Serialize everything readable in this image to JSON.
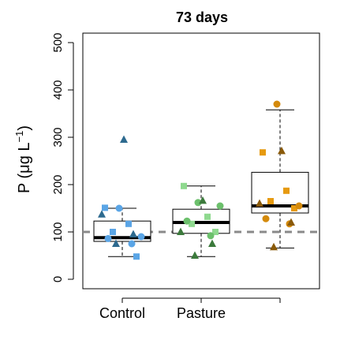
{
  "chart_data": {
    "type": "box",
    "title": "73 days",
    "ylabel": {
      "prefix": "P (",
      "mu": "μ",
      "g": "g L",
      "sup": "−1",
      "suffix": ")"
    },
    "categories": [
      "Control",
      "Pasture",
      ""
    ],
    "ylim": [
      -20,
      520
    ],
    "yticks": [
      0,
      100,
      200,
      300,
      400,
      500
    ],
    "reference_line": 100,
    "boxes": [
      {
        "whisker_low": 48,
        "q1": 80,
        "median": 88,
        "q3": 123,
        "whisker_high": 150
      },
      {
        "whisker_low": 48,
        "q1": 97,
        "median": 120,
        "q3": 148,
        "whisker_high": 197
      },
      {
        "whisker_low": 66,
        "q1": 140,
        "median": 155,
        "q3": 226,
        "whisker_high": 358
      }
    ],
    "points": [
      {
        "group": 0,
        "shape": "square",
        "color": "#5aa5e6",
        "y": 151
      },
      {
        "group": 0,
        "shape": "square",
        "color": "#5aa5e6",
        "y": 117
      },
      {
        "group": 0,
        "shape": "square",
        "color": "#5aa5e6",
        "y": 100
      },
      {
        "group": 0,
        "shape": "square",
        "color": "#5aa5e6",
        "y": 48
      },
      {
        "group": 0,
        "shape": "circle",
        "color": "#5aa5e6",
        "y": 150
      },
      {
        "group": 0,
        "shape": "circle",
        "color": "#5aa5e6",
        "y": 90
      },
      {
        "group": 0,
        "shape": "circle",
        "color": "#5aa5e6",
        "y": 86
      },
      {
        "group": 0,
        "shape": "circle",
        "color": "#5aa5e6",
        "y": 75
      },
      {
        "group": 0,
        "shape": "triangle",
        "color": "#2d6a8f",
        "y": 295
      },
      {
        "group": 0,
        "shape": "triangle",
        "color": "#2d6a8f",
        "y": 137
      },
      {
        "group": 0,
        "shape": "triangle",
        "color": "#2d6a8f",
        "y": 95
      },
      {
        "group": 0,
        "shape": "triangle",
        "color": "#2d6a8f",
        "y": 75
      },
      {
        "group": 1,
        "shape": "square",
        "color": "#8fd98f",
        "y": 197
      },
      {
        "group": 1,
        "shape": "square",
        "color": "#8fd98f",
        "y": 132
      },
      {
        "group": 1,
        "shape": "square",
        "color": "#8fd98f",
        "y": 117
      },
      {
        "group": 1,
        "shape": "square",
        "color": "#8fd98f",
        "y": 100
      },
      {
        "group": 1,
        "shape": "circle",
        "color": "#6cc06c",
        "y": 162
      },
      {
        "group": 1,
        "shape": "circle",
        "color": "#6cc06c",
        "y": 155
      },
      {
        "group": 1,
        "shape": "circle",
        "color": "#6cc06c",
        "y": 123
      },
      {
        "group": 1,
        "shape": "circle",
        "color": "#6cc06c",
        "y": 92
      },
      {
        "group": 1,
        "shape": "triangle",
        "color": "#3c7a3c",
        "y": 166
      },
      {
        "group": 1,
        "shape": "triangle",
        "color": "#3c7a3c",
        "y": 100
      },
      {
        "group": 1,
        "shape": "triangle",
        "color": "#3c7a3c",
        "y": 75
      },
      {
        "group": 1,
        "shape": "triangle",
        "color": "#3c7a3c",
        "y": 50
      },
      {
        "group": 2,
        "shape": "square",
        "color": "#e69a10",
        "y": 268
      },
      {
        "group": 2,
        "shape": "square",
        "color": "#e69a10",
        "y": 187
      },
      {
        "group": 2,
        "shape": "square",
        "color": "#e69a10",
        "y": 165
      },
      {
        "group": 2,
        "shape": "square",
        "color": "#e69a10",
        "y": 150
      },
      {
        "group": 2,
        "shape": "circle",
        "color": "#d48a0c",
        "y": 370
      },
      {
        "group": 2,
        "shape": "circle",
        "color": "#d48a0c",
        "y": 155
      },
      {
        "group": 2,
        "shape": "circle",
        "color": "#d48a0c",
        "y": 128
      },
      {
        "group": 2,
        "shape": "circle",
        "color": "#d48a0c",
        "y": 117
      },
      {
        "group": 2,
        "shape": "triangle",
        "color": "#8a5a0a",
        "y": 271
      },
      {
        "group": 2,
        "shape": "triangle",
        "color": "#8a5a0a",
        "y": 160
      },
      {
        "group": 2,
        "shape": "triangle",
        "color": "#8a5a0a",
        "y": 120
      },
      {
        "group": 2,
        "shape": "triangle",
        "color": "#8a5a0a",
        "y": 68
      }
    ],
    "grid": false,
    "legend": "none"
  }
}
